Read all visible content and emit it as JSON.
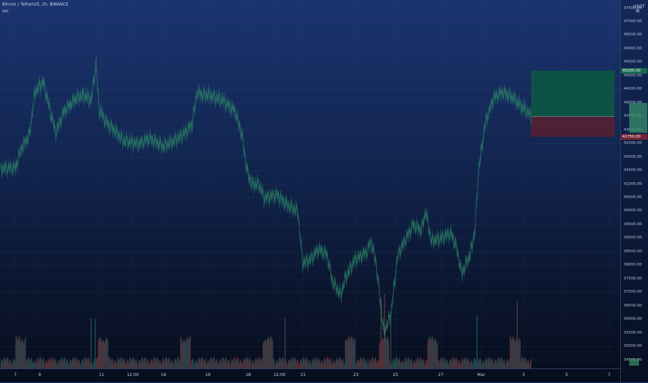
{
  "legend": {
    "symbol_line": "Bitcoin / TetherUS, 1h, BINANCE",
    "volume_label": "Vol"
  },
  "price_axis": {
    "currency": "USDT",
    "labels": [
      "47500.00",
      "47000.00",
      "46500.00",
      "46000.00",
      "45500.00",
      "45000.00",
      "44500.00",
      "44000.00",
      "43500.00",
      "43000.00",
      "42500.00",
      "42000.00",
      "41500.00",
      "41000.00",
      "40500.00",
      "40000.00",
      "39500.00",
      "39000.00",
      "38500.00",
      "38000.00",
      "37500.00",
      "37000.00",
      "36500.00",
      "36000.00",
      "35500.00",
      "35000.00",
      "34500.00"
    ],
    "target_tag": "45200.00",
    "stop_tag": "42750.00"
  },
  "time_axis": {
    "labels": [
      "7",
      "9",
      "11",
      "12:00",
      "14",
      "16",
      "18",
      "12:00",
      "21",
      "23",
      "25",
      "27",
      "Mar",
      "3",
      "5",
      "7"
    ]
  },
  "position": {
    "type": "long",
    "entry": 43500,
    "target": 45200,
    "stop": 42750
  },
  "colors": {
    "up": "#26a69a",
    "down": "#ef5350",
    "target_zone": "#0b5d3f",
    "stop_zone": "#5a1e2e"
  },
  "chart_data": {
    "type": "candlestick",
    "symbol": "Bitcoin / TetherUS",
    "timeframe": "1h",
    "exchange": "BINANCE",
    "ylim": [
      34500,
      47500
    ],
    "x": [
      "7",
      "9",
      "11",
      "12:00",
      "14",
      "16",
      "18",
      "12:00",
      "21",
      "23",
      "25",
      "27",
      "Mar",
      "3"
    ],
    "close": [
      41500,
      44400,
      44300,
      42500,
      42500,
      44300,
      41000,
      40200,
      38300,
      36900,
      38900,
      39000,
      43800,
      43800
    ]
  }
}
